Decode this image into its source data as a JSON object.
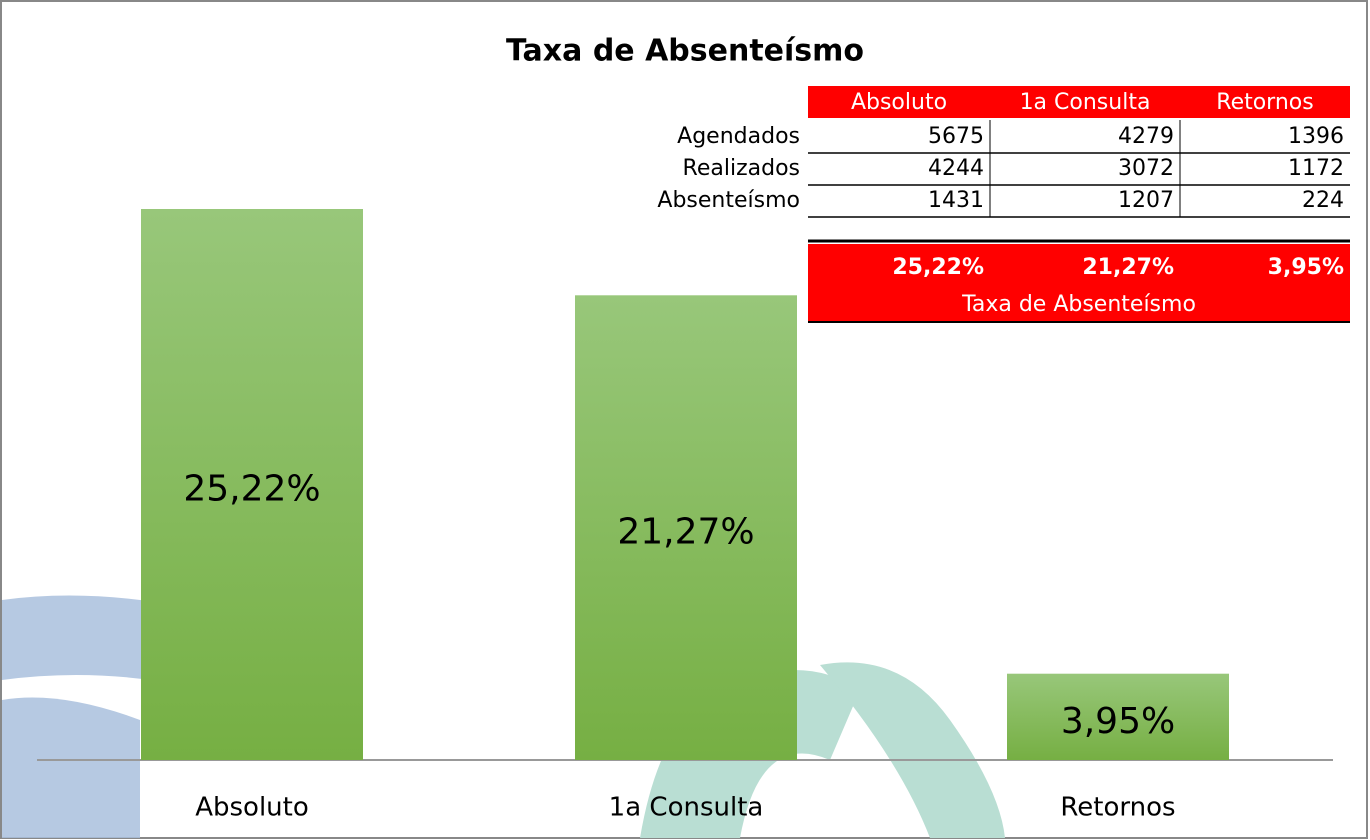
{
  "chart_data": {
    "type": "bar",
    "title": "Taxa de Absenteísmo",
    "categories": [
      "Absoluto",
      "1a Consulta",
      "Retornos"
    ],
    "values": [
      25.22,
      21.27,
      3.95
    ],
    "value_labels": [
      "25,22%",
      "21,27%",
      "3,95%"
    ],
    "color": "#84b855"
  },
  "table": {
    "rows": [
      {
        "label": "Agendados",
        "values": [
          5675,
          4279,
          1396
        ]
      },
      {
        "label": "Realizados",
        "values": [
          4244,
          3072,
          1172
        ]
      },
      {
        "label": "Absenteísmo",
        "values": [
          1431,
          1207,
          224
        ]
      }
    ]
  }
}
